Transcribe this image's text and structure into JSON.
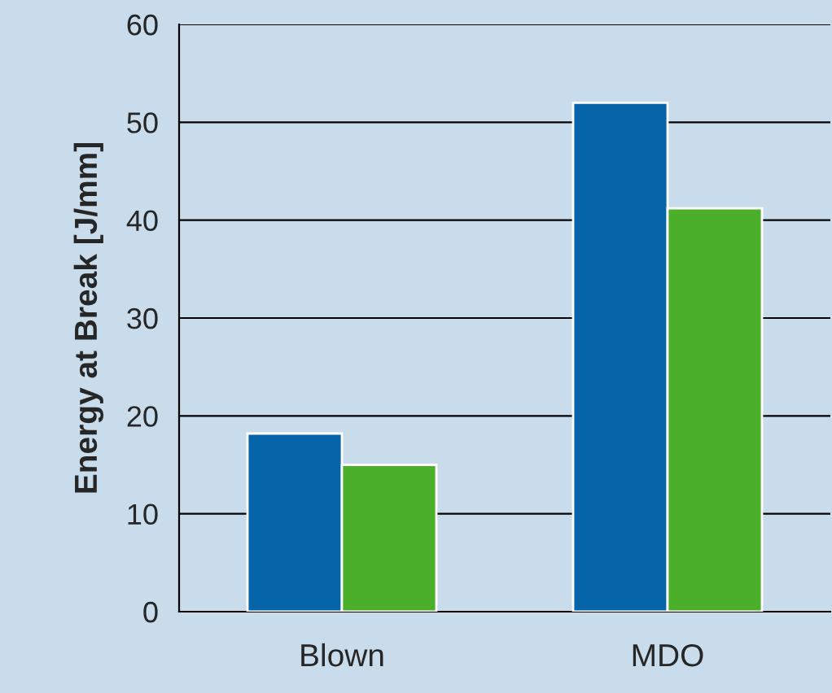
{
  "chart_data": {
    "type": "bar",
    "ylabel": "Energy at Break [J/mm]",
    "categories": [
      "Blown",
      "MDO"
    ],
    "series": [
      {
        "color": "#0565a8",
        "values": [
          18.2,
          52.0
        ]
      },
      {
        "color": "#4caf2a",
        "values": [
          15.0,
          41.2
        ]
      }
    ],
    "ylim": [
      0,
      60
    ],
    "yticks": [
      0,
      10,
      20,
      30,
      40,
      50,
      60
    ],
    "grid": "y",
    "legend": false
  }
}
